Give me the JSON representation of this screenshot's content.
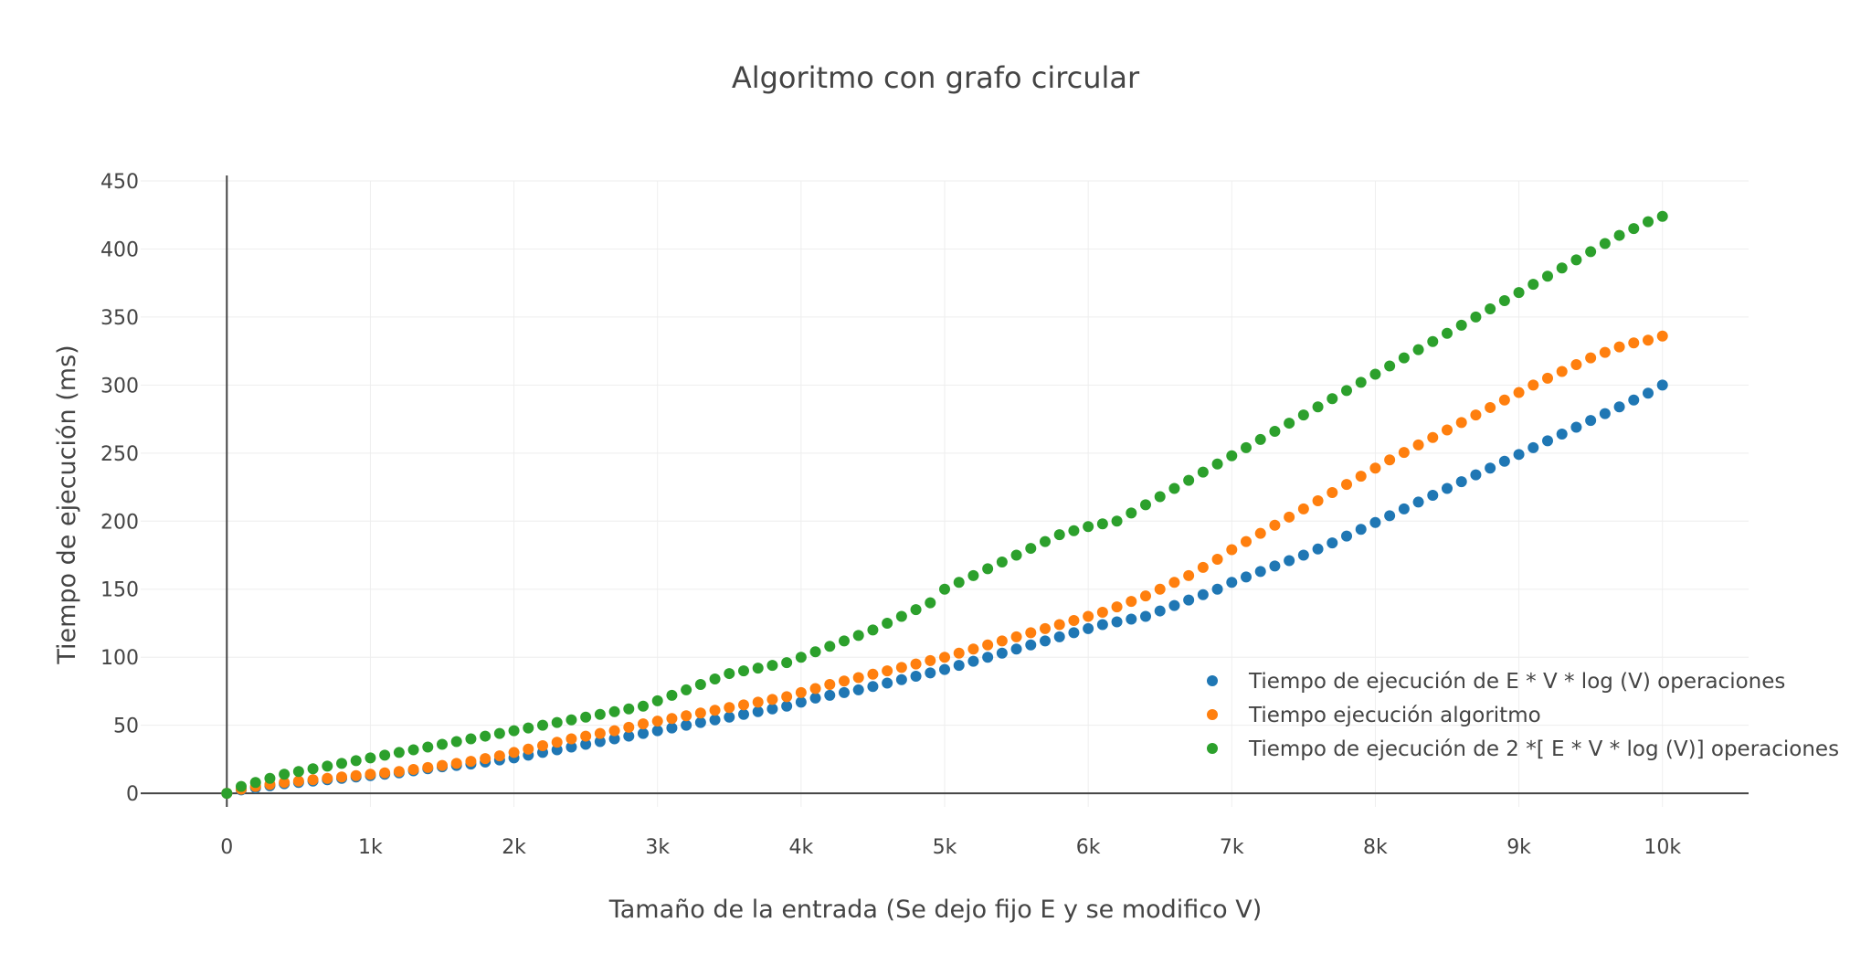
{
  "chart_data": {
    "type": "scatter",
    "title": "Algoritmo con grafo circular",
    "xlabel": "Tamaño de la entrada (Se dejo fijo E y se modifico V)",
    "ylabel": "Tiempo de ejecución (ms)",
    "xlim": [
      -600,
      10600
    ],
    "ylim": [
      -10,
      450
    ],
    "xticks": [
      0,
      1000,
      2000,
      3000,
      4000,
      5000,
      6000,
      7000,
      8000,
      9000,
      10000
    ],
    "xtick_labels": [
      "0",
      "1k",
      "2k",
      "3k",
      "4k",
      "5k",
      "6k",
      "7k",
      "8k",
      "9k",
      "10k"
    ],
    "yticks": [
      0,
      50,
      100,
      150,
      200,
      250,
      300,
      350,
      400,
      450
    ],
    "ytick_labels": [
      "0",
      "50",
      "100",
      "150",
      "200",
      "250",
      "300",
      "350",
      "400",
      "450"
    ],
    "grid": true,
    "legend_position": "bottom-right",
    "x": [
      0,
      100,
      200,
      300,
      400,
      500,
      600,
      700,
      800,
      900,
      1000,
      1100,
      1200,
      1300,
      1400,
      1500,
      1600,
      1700,
      1800,
      1900,
      2000,
      2100,
      2200,
      2300,
      2400,
      2500,
      2600,
      2700,
      2800,
      2900,
      3000,
      3100,
      3200,
      3300,
      3400,
      3500,
      3600,
      3700,
      3800,
      3900,
      4000,
      4100,
      4200,
      4300,
      4400,
      4500,
      4600,
      4700,
      4800,
      4900,
      5000,
      5100,
      5200,
      5300,
      5400,
      5500,
      5600,
      5700,
      5800,
      5900,
      6000,
      6100,
      6200,
      6300,
      6400,
      6500,
      6600,
      6700,
      6800,
      6900,
      7000,
      7100,
      7200,
      7300,
      7400,
      7500,
      7600,
      7700,
      7800,
      7900,
      8000,
      8100,
      8200,
      8300,
      8400,
      8500,
      8600,
      8700,
      8800,
      8900,
      9000,
      9100,
      9200,
      9300,
      9400,
      9500,
      9600,
      9700,
      9800,
      9900,
      10000
    ],
    "series": [
      {
        "name": "Tiempo de ejecución de E * V * log (V) operaciones",
        "color": "#1f77b4",
        "values": [
          0,
          2.5,
          4,
          5.5,
          7,
          8,
          9,
          10,
          11,
          12,
          13,
          14,
          15,
          16.5,
          18,
          19.5,
          20.5,
          21.5,
          23,
          24.5,
          26,
          28,
          30,
          32,
          34,
          36,
          38,
          40,
          42,
          44,
          46,
          48,
          50,
          52,
          54,
          56,
          58,
          60,
          62,
          64,
          67,
          70,
          72,
          74,
          76,
          78.5,
          81,
          83.5,
          86,
          88.5,
          91,
          94,
          97,
          100,
          103,
          106,
          109,
          112,
          115,
          118,
          121,
          124,
          126,
          128,
          130,
          134,
          138,
          142,
          146,
          150,
          155,
          159,
          163,
          167,
          171,
          175,
          179.5,
          184,
          189,
          194,
          199,
          204,
          209,
          214,
          219,
          224,
          229,
          234,
          239,
          244,
          249,
          254,
          259,
          264,
          269,
          274,
          279,
          284,
          289,
          294,
          300
        ]
      },
      {
        "name": "Tiempo ejecución algoritmo",
        "color": "#ff7f0e",
        "values": [
          0,
          3,
          5,
          6.5,
          8,
          9,
          10,
          11,
          12,
          13,
          14,
          15,
          16,
          17.5,
          19,
          20.5,
          22,
          23.5,
          25.5,
          27.5,
          30,
          32.5,
          35,
          37.5,
          40,
          42,
          44,
          46,
          48.5,
          51,
          53,
          55,
          57,
          59,
          61,
          63,
          65,
          67,
          69,
          71,
          74,
          77,
          80,
          82.5,
          85,
          87.5,
          90,
          92.5,
          95,
          97.5,
          100,
          103,
          106,
          109,
          112,
          115,
          118,
          121,
          124,
          127,
          130,
          133,
          137,
          141,
          145,
          150,
          155,
          160,
          166,
          172,
          179,
          185,
          191,
          197,
          203,
          209,
          215,
          221,
          227,
          233,
          239,
          245,
          250.5,
          256,
          261.5,
          267,
          272.5,
          278,
          283.5,
          289,
          294.5,
          300,
          305,
          310,
          315,
          320,
          324,
          328,
          331,
          333,
          336
        ]
      },
      {
        "name": "Tiempo de ejecución de 2 *[ E * V * log (V)] operaciones",
        "color": "#2ca02c",
        "values": [
          0,
          5,
          8,
          11,
          14,
          16,
          18,
          20,
          22,
          24,
          26,
          28,
          30,
          32,
          34,
          36,
          38,
          40,
          42,
          44,
          46,
          48,
          50,
          52,
          54,
          56,
          58,
          60,
          62,
          64,
          68,
          72,
          76,
          80,
          84,
          88,
          90,
          92,
          94,
          96,
          100,
          104,
          108,
          112,
          116,
          120,
          125,
          130,
          135,
          140,
          150,
          155,
          160,
          165,
          170,
          175,
          180,
          185,
          190,
          193,
          196,
          198,
          200,
          206,
          212,
          218,
          224,
          230,
          236,
          242,
          248,
          254,
          260,
          266,
          272,
          278,
          284,
          290,
          296,
          302,
          308,
          314,
          320,
          326,
          332,
          338,
          344,
          350,
          356,
          362,
          368,
          374,
          380,
          386,
          392,
          398,
          404,
          410,
          415,
          420,
          424
        ]
      }
    ]
  }
}
